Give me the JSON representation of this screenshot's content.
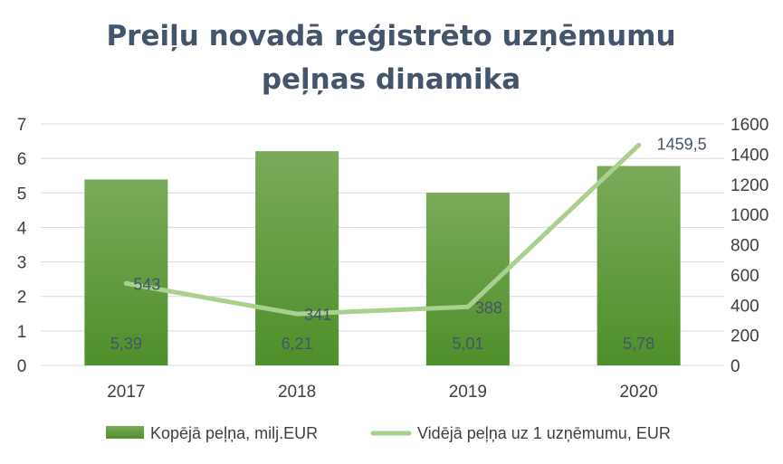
{
  "chart_data": {
    "type": "bar",
    "title_lines": [
      "Preiļu novadā reģistrēto uzņēmumu",
      "peļņas dinamika"
    ],
    "categories": [
      "2017",
      "2018",
      "2019",
      "2020"
    ],
    "series": [
      {
        "name": "Kopējā peļņa, milj.EUR",
        "type": "bar",
        "axis": "left",
        "values": [
          5.39,
          6.21,
          5.01,
          5.78
        ],
        "labels": [
          "5,39",
          "6,21",
          "5,01",
          "5,78"
        ],
        "color": "#70ad47"
      },
      {
        "name": "Vidējā peļņa uz 1 uzņēmumu, EUR",
        "type": "line",
        "axis": "right",
        "values": [
          543,
          341,
          388,
          1459.5
        ],
        "labels": [
          "543",
          "341",
          "388",
          "1459,5"
        ],
        "color": "#a9d08e"
      }
    ],
    "y_left": {
      "min": 0,
      "max": 7,
      "ticks": [
        "0",
        "1",
        "2",
        "3",
        "4",
        "5",
        "6",
        "7"
      ]
    },
    "y_right": {
      "min": 0,
      "max": 1600,
      "ticks": [
        "0",
        "200",
        "400",
        "600",
        "800",
        "1000",
        "1200",
        "1400",
        "1600"
      ]
    },
    "grid": true,
    "legend_position": "bottom"
  }
}
